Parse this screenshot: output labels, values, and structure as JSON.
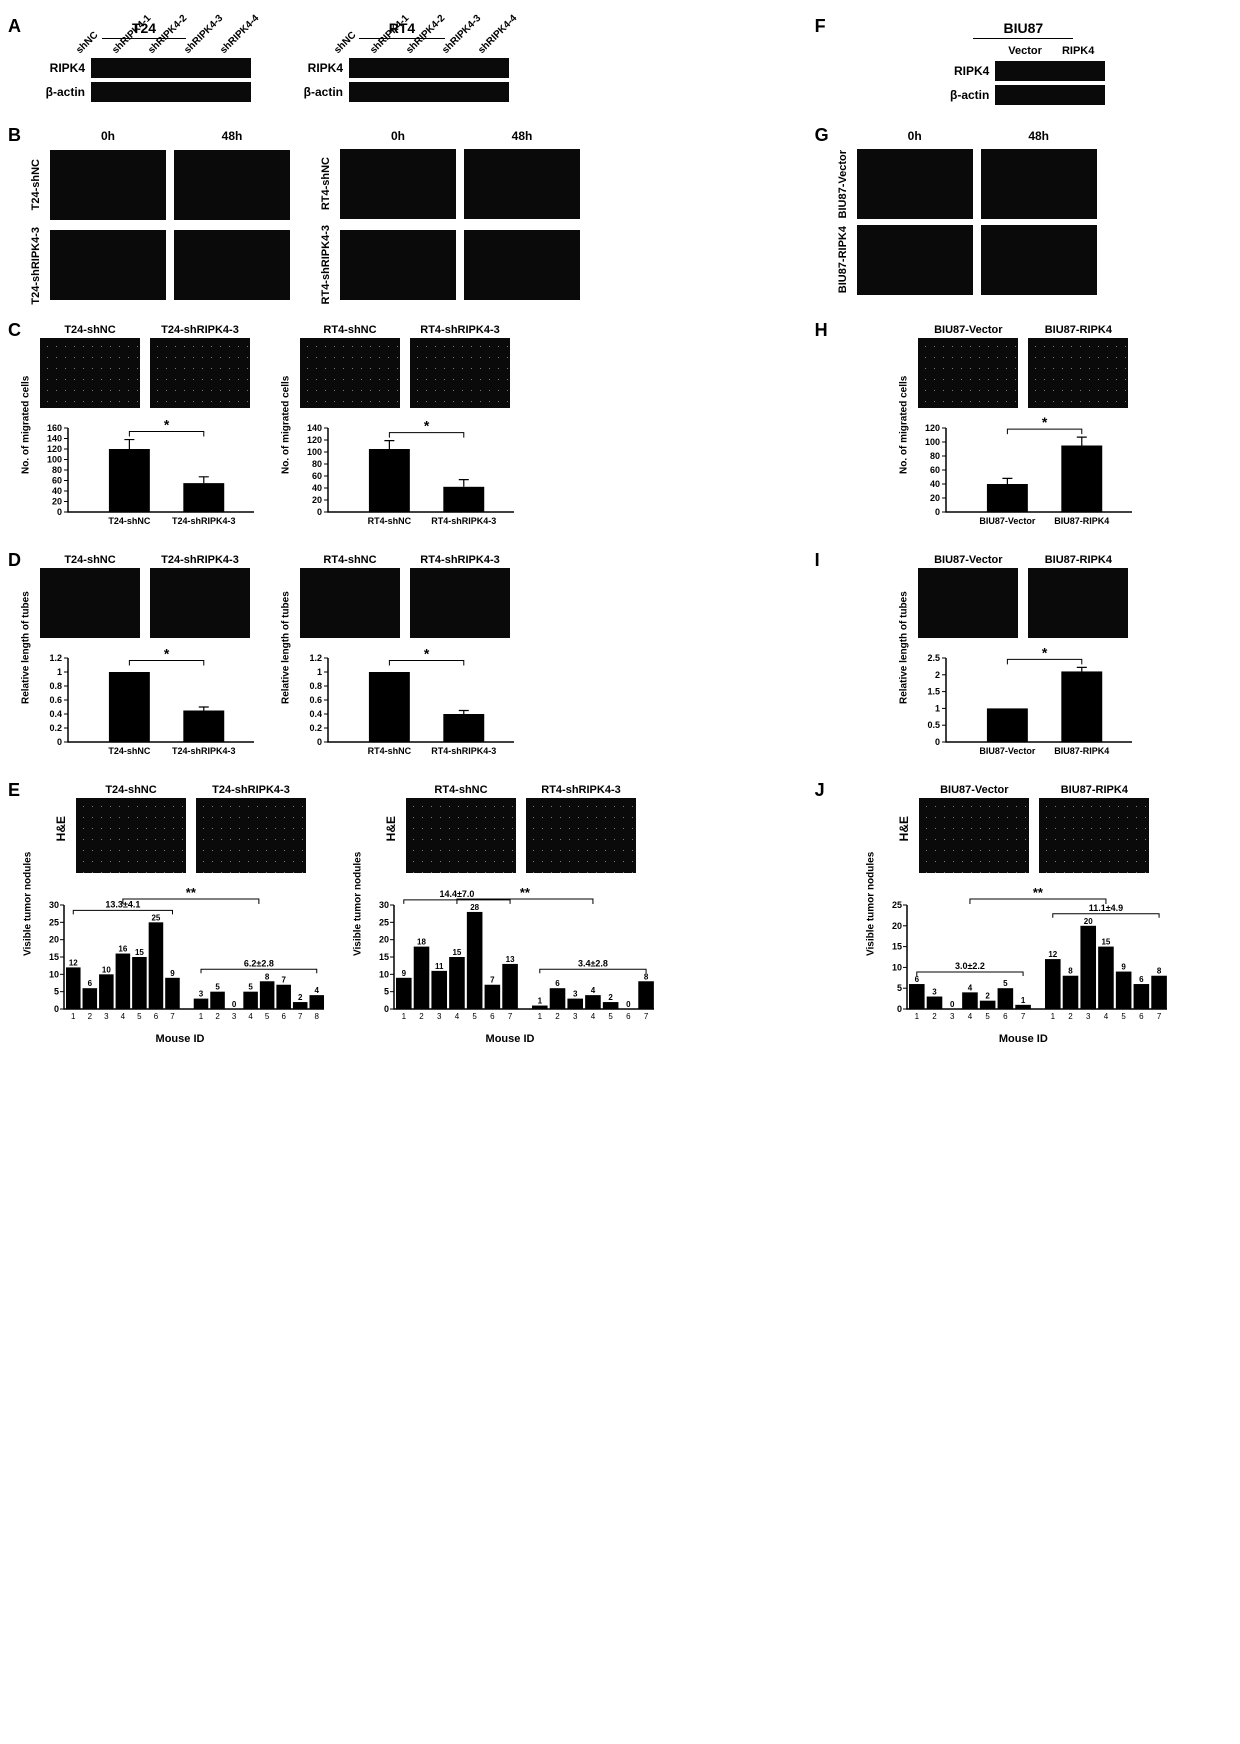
{
  "letters": {
    "A": "A",
    "B": "B",
    "C": "C",
    "D": "D",
    "E": "E",
    "F": "F",
    "G": "G",
    "H": "H",
    "I": "I",
    "J": "J"
  },
  "colors": {
    "bar": "#000000",
    "axis": "#000000",
    "bg": "#ffffff"
  },
  "panelA": {
    "left": {
      "title": "T24",
      "lanes": [
        "shNC",
        "shRIPK4-1",
        "shRIPK4-2",
        "shRIPK4-3",
        "shRIPK4-4"
      ],
      "rows": [
        "RIPK4",
        "β-actin"
      ]
    },
    "right": {
      "title": "RT4",
      "lanes": [
        "shNC",
        "shRIPK4-1",
        "shRIPK4-2",
        "shRIPK4-3",
        "shRIPK4-4"
      ],
      "rows": [
        "RIPK4",
        "β-actin"
      ]
    }
  },
  "panelF": {
    "title": "BIU87",
    "lanes": [
      "Vector",
      "RIPK4"
    ],
    "rows": [
      "RIPK4",
      "β-actin"
    ]
  },
  "panelB": {
    "left": {
      "cols": [
        "0h",
        "48h"
      ],
      "rows": [
        "T24-shNC",
        "T24-shRIPK4-3"
      ]
    },
    "right": {
      "cols": [
        "0h",
        "48h"
      ],
      "rows": [
        "RT4-shNC",
        "RT4-shRIPK4-3"
      ]
    }
  },
  "panelG": {
    "cols": [
      "0h",
      "48h"
    ],
    "rows": [
      "BIU87-Vector",
      "BIU87-RIPK4"
    ]
  },
  "panelC": {
    "ylabel": "No. of migrated cells",
    "sig": "*",
    "left": {
      "labels": [
        "T24-shNC",
        "T24-shRIPK4-3"
      ],
      "values": [
        120,
        55
      ],
      "err": [
        18,
        12
      ],
      "ylim": [
        0,
        160
      ],
      "ystep": 20
    },
    "right": {
      "labels": [
        "RT4-shNC",
        "RT4-shRIPK4-3"
      ],
      "values": [
        105,
        42
      ],
      "err": [
        14,
        12
      ],
      "ylim": [
        0,
        140
      ],
      "ystep": 20
    }
  },
  "panelH": {
    "ylabel": "No. of migrated cells",
    "sig": "*",
    "labels": [
      "BIU87-Vector",
      "BIU87-RIPK4"
    ],
    "values": [
      40,
      95
    ],
    "err": [
      8,
      12
    ],
    "ylim": [
      0,
      120
    ],
    "ystep": 20
  },
  "panelD": {
    "ylabel": "Relative length of tubes",
    "sig": "*",
    "left": {
      "labels": [
        "T24-shNC",
        "T24-shRIPK4-3"
      ],
      "values": [
        1.0,
        0.45
      ],
      "err": [
        0,
        0.05
      ],
      "ylim": [
        0,
        1.2
      ],
      "ystep": 0.2
    },
    "right": {
      "labels": [
        "RT4-shNC",
        "RT4-shRIPK4-3"
      ],
      "values": [
        1.0,
        0.4
      ],
      "err": [
        0,
        0.05
      ],
      "ylim": [
        0,
        1.2
      ],
      "ystep": 0.2
    }
  },
  "panelI": {
    "ylabel": "Relative length of tubes",
    "sig": "*",
    "labels": [
      "BIU87-Vector",
      "BIU87-RIPK4"
    ],
    "values": [
      1.0,
      2.1
    ],
    "err": [
      0,
      0.12
    ],
    "ylim": [
      0,
      2.5
    ],
    "ystep": 0.5
  },
  "panelE": {
    "he": "H&E",
    "ylabel": "Visible tumor nodules",
    "xlabel": "Mouse ID",
    "sig": "**",
    "left": {
      "labels": [
        "T24-shNC",
        "T24-shRIPK4-3"
      ],
      "mean1": "13.3±4.1",
      "mean2": "6.2±2.8",
      "g1": [
        12,
        6,
        10,
        16,
        15,
        25,
        9
      ],
      "g2": [
        3,
        5,
        0,
        5,
        8,
        7,
        2,
        4
      ],
      "ylim": [
        0,
        30
      ],
      "ystep": 5
    },
    "right": {
      "labels": [
        "RT4-shNC",
        "RT4-shRIPK4-3"
      ],
      "mean1": "14.4±7.0",
      "mean2": "3.4±2.8",
      "g1": [
        9,
        18,
        11,
        15,
        28,
        7,
        13
      ],
      "g2": [
        1,
        6,
        3,
        4,
        2,
        0,
        8
      ],
      "ylim": [
        0,
        30
      ],
      "ystep": 5
    }
  },
  "panelJ": {
    "he": "H&E",
    "ylabel": "Visible tumor nodules",
    "xlabel": "Mouse ID",
    "sig": "**",
    "labels": [
      "BIU87-Vector",
      "BIU87-RIPK4"
    ],
    "mean1": "3.0±2.2",
    "mean2": "11.1±4.9",
    "g1": [
      6,
      3,
      0,
      4,
      2,
      5,
      1
    ],
    "g2": [
      12,
      8,
      20,
      15,
      9,
      6,
      8
    ],
    "ylim": [
      0,
      25
    ],
    "ystep": 5
  }
}
